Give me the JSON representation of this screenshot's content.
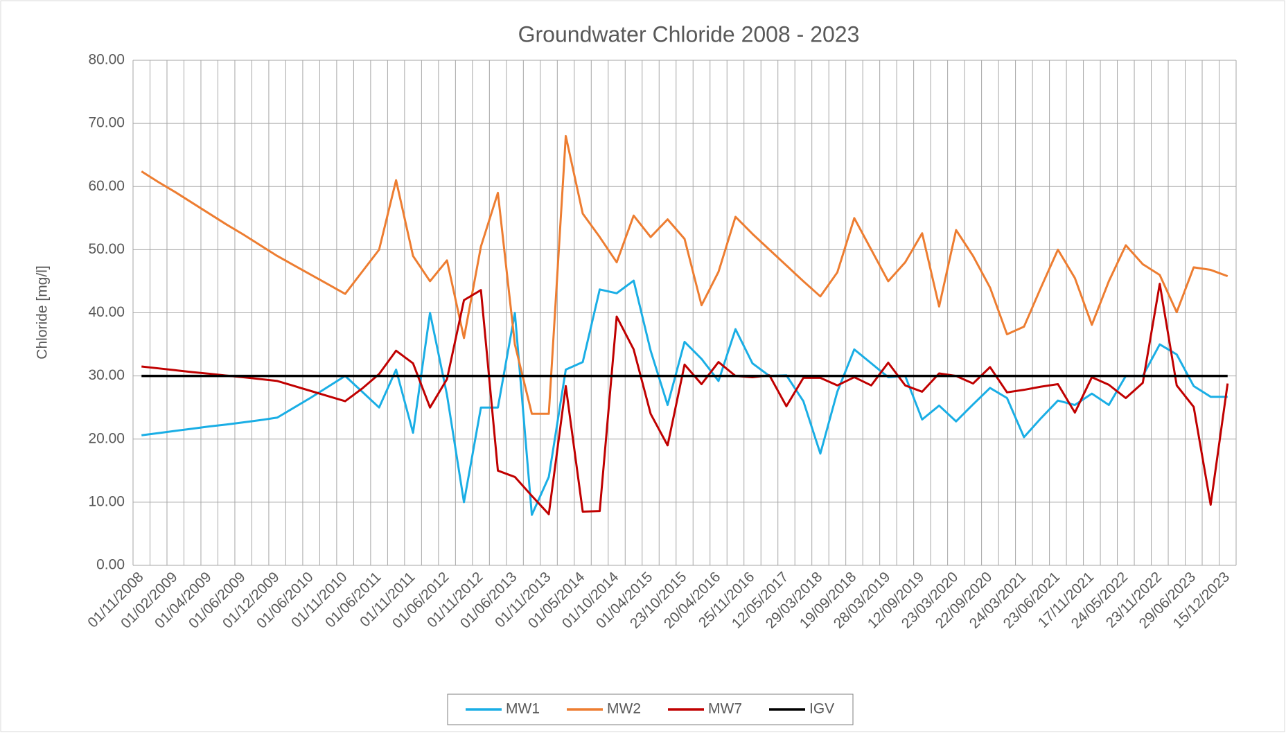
{
  "chart_data": {
    "type": "line",
    "title": "Groundwater Chloride 2008 - 2023",
    "y_label": "Chloride [mg/l]",
    "categories": [
      "01/11/2008",
      null,
      "01/02/2009",
      null,
      "01/04/2009",
      null,
      "01/06/2009",
      null,
      "01/12/2009",
      null,
      "01/06/2010",
      null,
      "01/11/2010",
      null,
      "01/06/2011",
      null,
      "01/11/2011",
      null,
      "01/06/2012",
      null,
      "01/11/2012",
      null,
      "01/06/2013",
      null,
      "01/11/2013",
      null,
      "01/05/2014",
      null,
      "01/10/2014",
      null,
      "01/04/2015",
      null,
      "23/10/2015",
      null,
      "20/04/2016",
      null,
      "25/11/2016",
      null,
      "12/05/2017",
      null,
      "29/03/2018",
      null,
      "19/09/2018",
      null,
      "28/03/2019",
      null,
      "12/09/2019",
      null,
      "23/03/2020",
      null,
      "22/09/2020",
      null,
      "24/03/2021",
      null,
      "23/06/2021",
      null,
      "17/11/2021",
      null,
      "24/05/2022",
      null,
      "23/11/2022",
      null,
      "29/06/2023",
      null,
      "15/12/2023"
    ],
    "series": [
      {
        "name": "MW1",
        "color": "#1aaee5",
        "values": [
          20.6,
          20.95,
          21.3,
          21.65,
          22.0,
          22.3,
          22.65,
          23.0,
          23.4,
          25.0,
          26.6,
          28.3,
          30,
          27.5,
          25,
          31,
          21,
          40,
          27,
          10,
          25,
          25,
          40,
          8,
          14,
          31,
          32.2,
          43.7,
          43.1,
          45.1,
          34,
          25.4,
          35.4,
          32.7,
          29.2,
          37.4,
          32,
          30,
          30.1,
          26,
          17.7,
          27.5,
          34.2,
          32,
          29.8,
          30,
          23.1,
          25.3,
          22.8,
          25.5,
          28.1,
          26.5,
          20.3,
          23.3,
          26.1,
          25.4,
          27.2,
          25.4,
          30,
          30,
          35,
          33.4,
          28.4,
          26.7,
          26.7
        ]
      },
      {
        "name": "MW2",
        "color": "#ed7d31",
        "values": [
          62.4,
          60.7,
          59.1,
          57.4,
          55.7,
          54.0,
          52.4,
          50.7,
          49.0,
          47.5,
          46,
          44.5,
          43,
          46.5,
          50,
          61,
          49,
          45,
          48.3,
          36,
          50.5,
          59,
          35,
          24,
          24,
          68,
          55.7,
          52,
          48,
          55.4,
          52,
          54.8,
          51.7,
          41.2,
          46.5,
          55.2,
          52.5,
          50,
          47.5,
          45,
          42.6,
          46.4,
          55,
          50,
          45,
          48,
          52.6,
          41,
          53.1,
          49,
          44,
          36.6,
          37.8,
          44,
          50,
          45.5,
          38.1,
          45,
          50.7,
          47.7,
          46,
          40.1,
          47.2,
          46.8,
          45.8
        ]
      },
      {
        "name": "MW7",
        "color": "#c00000",
        "values": [
          31.5,
          31.2,
          30.9,
          30.6,
          30.35,
          30.05,
          29.8,
          29.5,
          29.2,
          28.4,
          27.6,
          26.8,
          26.0,
          28,
          30.3,
          34,
          32,
          25,
          29.5,
          42,
          43.6,
          15,
          14,
          11,
          8.1,
          28.4,
          8.5,
          8.6,
          39.4,
          34.2,
          24,
          19,
          31.8,
          28.7,
          32.2,
          30,
          29.8,
          30.1,
          25.2,
          29.7,
          29.7,
          28.5,
          29.8,
          28.5,
          32.1,
          28.5,
          27.5,
          30.4,
          30,
          28.8,
          31.4,
          27.4,
          27.8,
          28.3,
          28.7,
          24.2,
          29.8,
          28.6,
          26.5,
          28.9,
          44.6,
          28.5,
          25.1,
          9.6,
          28.8
        ]
      },
      {
        "name": "IGV",
        "color": "#000000",
        "values": [
          30,
          30,
          30,
          30,
          30,
          30,
          30,
          30,
          30,
          30,
          30,
          30,
          30,
          30,
          30,
          30,
          30,
          30,
          30,
          30,
          30,
          30,
          30,
          30,
          30,
          30,
          30,
          30,
          30,
          30,
          30,
          30,
          30,
          30,
          30,
          30,
          30,
          30,
          30,
          30,
          30,
          30,
          30,
          30,
          30,
          30,
          30,
          30,
          30,
          30,
          30,
          30,
          30,
          30,
          30,
          30,
          30,
          30,
          30,
          30,
          30,
          30,
          30,
          30,
          30
        ]
      }
    ],
    "ylim": [
      0,
      80
    ],
    "yticks": [
      {
        "value": 0,
        "label": "0.00"
      },
      {
        "value": 10,
        "label": "10.00"
      },
      {
        "value": 20,
        "label": "20.00"
      },
      {
        "value": 30,
        "label": "30.00"
      },
      {
        "value": 40,
        "label": "40.00"
      },
      {
        "value": 50,
        "label": "50.00"
      },
      {
        "value": 60,
        "label": "60.00"
      },
      {
        "value": 70,
        "label": "70.00"
      },
      {
        "value": 80,
        "label": "80.00"
      }
    ],
    "grid": true,
    "legend": "bottom"
  }
}
